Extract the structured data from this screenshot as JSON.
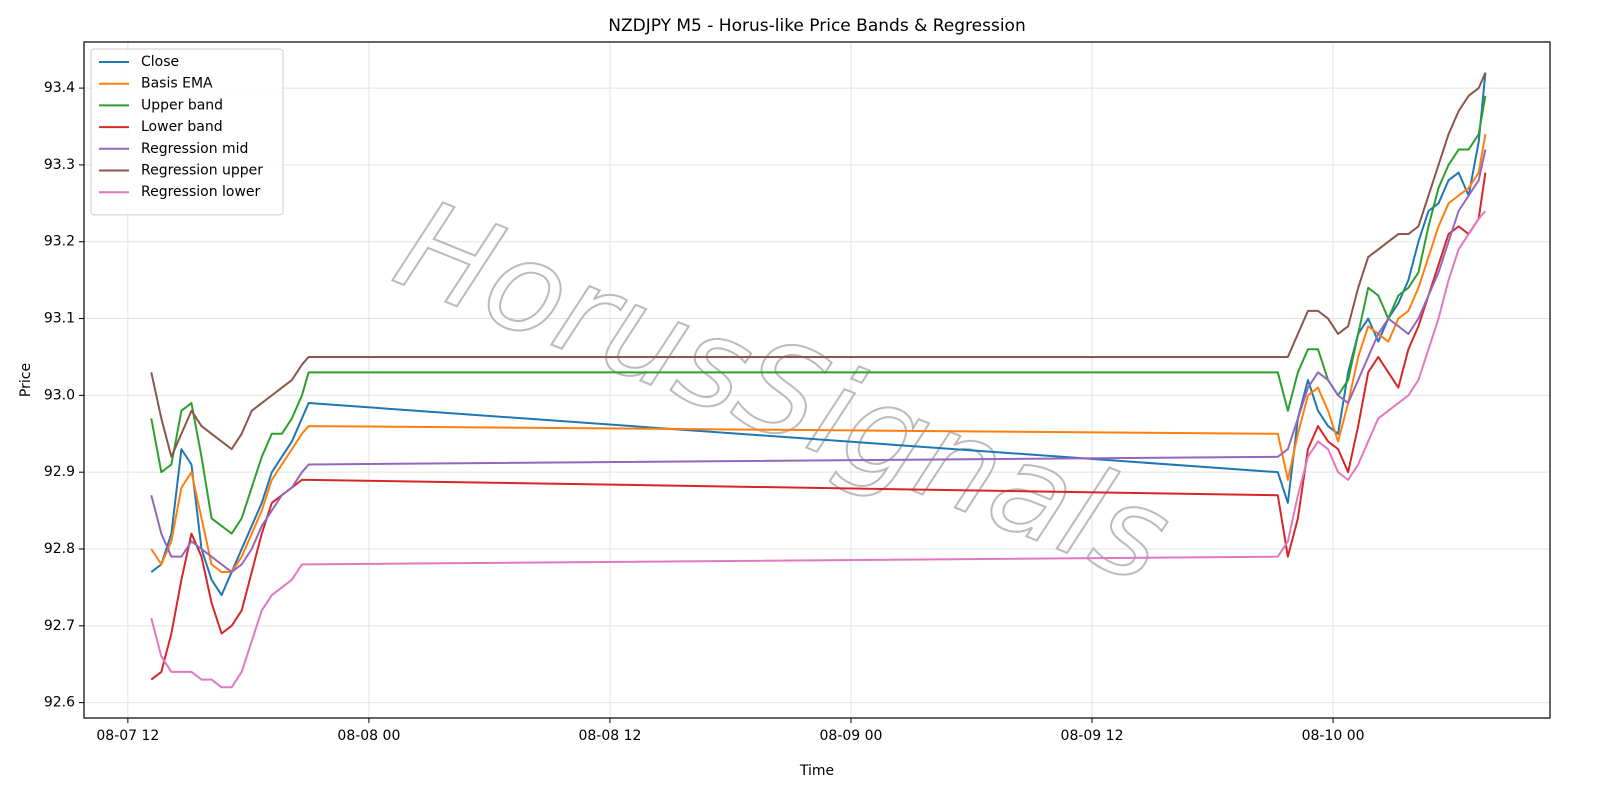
{
  "chart_data": {
    "type": "line",
    "title": "NZDJPY M5 - Horus-like Price Bands & Regression",
    "xlabel": "Time",
    "ylabel": "Price",
    "watermark": "HorusSignals",
    "grid": true,
    "legend": "upper left",
    "xlim": [
      "08-07 09:49",
      "08-10 10:48"
    ],
    "xticks": [
      "08-07 12",
      "08-08 00",
      "08-08 12",
      "08-09 00",
      "08-09 12",
      "08-10 00"
    ],
    "ylim": [
      92.58,
      93.46
    ],
    "yticks": [
      92.6,
      92.7,
      92.8,
      92.9,
      {
        "value": 93,
        "label": "93.0"
      },
      93.1,
      93.2,
      93.3,
      93.4
    ],
    "x": [
      "08-07 13:10",
      "08-07 13:40",
      "08-07 14:10",
      "08-07 14:40",
      "08-07 15:10",
      "08-07 15:40",
      "08-07 16:10",
      "08-07 16:40",
      "08-07 17:10",
      "08-07 17:40",
      "08-07 18:10",
      "08-07 18:40",
      "08-07 19:10",
      "08-07 19:40",
      "08-07 20:10",
      "08-07 20:40",
      "08-07 21:00",
      "08-09 21:15",
      "08-09 21:45",
      "08-09 22:15",
      "08-09 22:45",
      "08-09 23:15",
      "08-09 23:45",
      "08-10 00:15",
      "08-10 00:45",
      "08-10 01:15",
      "08-10 01:45",
      "08-10 02:15",
      "08-10 02:45",
      "08-10 03:15",
      "08-10 03:45",
      "08-10 04:15",
      "08-10 04:45",
      "08-10 05:15",
      "08-10 05:45",
      "08-10 06:15",
      "08-10 06:45",
      "08-10 07:15",
      "08-10 07:35"
    ],
    "series": [
      {
        "name": "Close",
        "color": "#1f77b4",
        "values": [
          92.77,
          92.78,
          92.82,
          92.93,
          92.91,
          92.8,
          92.76,
          92.74,
          92.77,
          92.8,
          92.83,
          92.86,
          92.9,
          92.92,
          92.94,
          92.97,
          92.99,
          92.9,
          92.86,
          92.97,
          93.02,
          92.98,
          92.96,
          92.95,
          93.03,
          93.08,
          93.1,
          93.07,
          93.1,
          93.12,
          93.15,
          93.2,
          93.24,
          93.25,
          93.28,
          93.29,
          93.26,
          93.33,
          93.42
        ]
      },
      {
        "name": "Basis EMA",
        "color": "#ff7f0e",
        "values": [
          92.8,
          92.78,
          92.81,
          92.88,
          92.9,
          92.84,
          92.78,
          92.77,
          92.77,
          92.79,
          92.82,
          92.85,
          92.89,
          92.91,
          92.93,
          92.95,
          92.96,
          92.95,
          92.89,
          92.95,
          93.0,
          93.01,
          92.98,
          92.94,
          92.99,
          93.05,
          93.09,
          93.08,
          93.07,
          93.1,
          93.11,
          93.14,
          93.18,
          93.22,
          93.25,
          93.26,
          93.27,
          93.29,
          93.34
        ]
      },
      {
        "name": "Upper band",
        "color": "#2ca02c",
        "values": [
          92.97,
          92.9,
          92.91,
          92.98,
          92.99,
          92.92,
          92.84,
          92.83,
          92.82,
          92.84,
          92.88,
          92.92,
          92.95,
          92.95,
          92.97,
          93.0,
          93.03,
          93.03,
          92.98,
          93.03,
          93.06,
          93.06,
          93.02,
          93.0,
          93.02,
          93.08,
          93.14,
          93.13,
          93.1,
          93.13,
          93.14,
          93.16,
          93.22,
          93.27,
          93.3,
          93.32,
          93.32,
          93.34,
          93.39
        ]
      },
      {
        "name": "Lower band",
        "color": "#d62728",
        "values": [
          92.63,
          92.64,
          92.69,
          92.76,
          92.82,
          92.79,
          92.73,
          92.69,
          92.7,
          92.72,
          92.77,
          92.82,
          92.86,
          92.87,
          92.88,
          92.89,
          92.89,
          92.87,
          92.79,
          92.84,
          92.93,
          92.96,
          92.94,
          92.93,
          92.9,
          92.96,
          93.03,
          93.05,
          93.03,
          93.01,
          93.06,
          93.09,
          93.13,
          93.17,
          93.21,
          93.22,
          93.21,
          93.23,
          93.29
        ]
      },
      {
        "name": "Regression mid",
        "color": "#9467bd",
        "values": [
          92.87,
          92.82,
          92.79,
          92.79,
          92.81,
          92.8,
          92.79,
          92.78,
          92.77,
          92.78,
          92.8,
          92.83,
          92.85,
          92.87,
          92.88,
          92.9,
          92.91,
          92.92,
          92.93,
          92.97,
          93.01,
          93.03,
          93.02,
          93.0,
          92.99,
          93.02,
          93.05,
          93.08,
          93.1,
          93.09,
          93.08,
          93.1,
          93.13,
          93.16,
          93.2,
          93.24,
          93.26,
          93.28,
          93.32
        ]
      },
      {
        "name": "Regression upper",
        "color": "#8c564b",
        "values": [
          93.03,
          92.97,
          92.92,
          92.95,
          92.98,
          92.96,
          92.95,
          92.94,
          92.93,
          92.95,
          92.98,
          92.99,
          93.0,
          93.01,
          93.02,
          93.04,
          93.05,
          93.05,
          93.05,
          93.08,
          93.11,
          93.11,
          93.1,
          93.08,
          93.09,
          93.14,
          93.18,
          93.19,
          93.2,
          93.21,
          93.21,
          93.22,
          93.26,
          93.3,
          93.34,
          93.37,
          93.39,
          93.4,
          93.42
        ]
      },
      {
        "name": "Regression lower",
        "color": "#e377c2",
        "values": [
          92.71,
          92.66,
          92.64,
          92.64,
          92.64,
          92.63,
          92.63,
          92.62,
          92.62,
          92.64,
          92.68,
          92.72,
          92.74,
          92.75,
          92.76,
          92.78,
          92.78,
          92.79,
          92.81,
          92.87,
          92.92,
          92.94,
          92.93,
          92.9,
          92.89,
          92.91,
          92.94,
          92.97,
          92.98,
          92.99,
          93.0,
          93.02,
          93.06,
          93.1,
          93.15,
          93.19,
          93.21,
          93.23,
          93.24
        ]
      }
    ]
  }
}
